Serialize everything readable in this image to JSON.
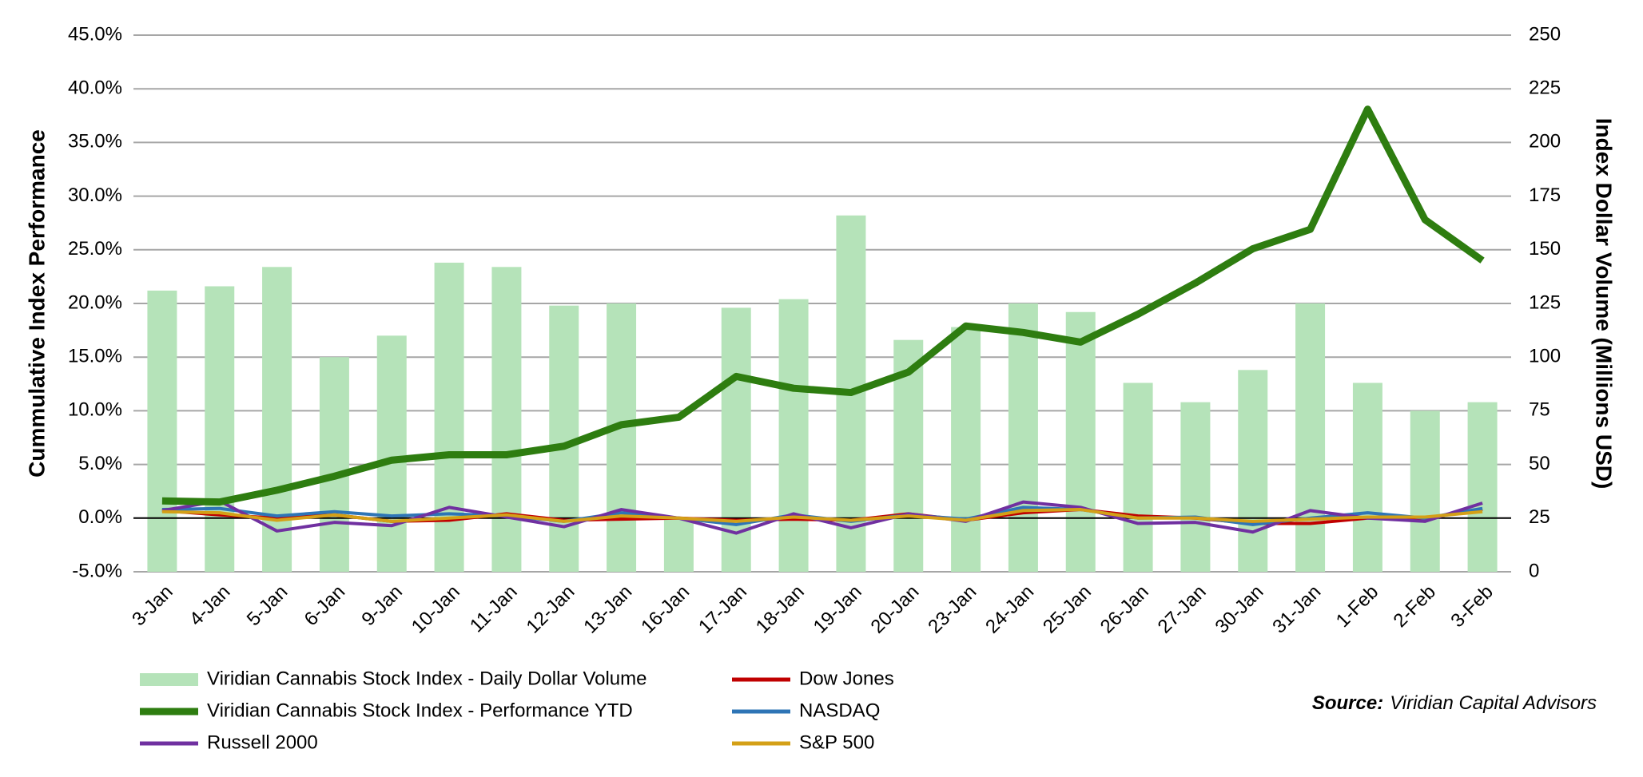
{
  "chart_data": {
    "type": "bar-line",
    "y_label": "Cummulative Index Performance",
    "y2_label": "Index Dollar Volume (Millions USD)",
    "source_label": "Source:",
    "source_text": "Viridian Capital Advisors",
    "categories": [
      "3-Jan",
      "4-Jan",
      "5-Jan",
      "6-Jan",
      "9-Jan",
      "10-Jan",
      "11-Jan",
      "12-Jan",
      "13-Jan",
      "16-Jan",
      "17-Jan",
      "18-Jan",
      "19-Jan",
      "20-Jan",
      "23-Jan",
      "24-Jan",
      "25-Jan",
      "26-Jan",
      "27-Jan",
      "30-Jan",
      "31-Jan",
      "1-Feb",
      "2-Feb",
      "3-Feb"
    ],
    "series": [
      {
        "name": "Viridian Cannabis Stock Index - Daily Dollar Volume",
        "type": "bar",
        "axis": "y2",
        "color": "#b5e3b9",
        "values": [
          131,
          133,
          142,
          100,
          110,
          144,
          142,
          124,
          125,
          25,
          123,
          127,
          166,
          108,
          114,
          125,
          121,
          88,
          79,
          94,
          125,
          88,
          75,
          79
        ]
      },
      {
        "name": "Viridian Cannabis Stock Index - Performance YTD",
        "type": "line",
        "color": "#2e7d10",
        "values": [
          1.6,
          1.5,
          2.6,
          3.9,
          5.4,
          5.9,
          5.9,
          6.7,
          8.7,
          9.4,
          13.2,
          12.1,
          11.7,
          13.6,
          17.9,
          17.3,
          16.4,
          19.0,
          21.9,
          25.1,
          26.9,
          38.1,
          27.8,
          24.0
        ]
      },
      {
        "name": "Dow Jones",
        "type": "line",
        "color": "#c00000",
        "values": [
          0.7,
          0.3,
          0,
          0.3,
          -0.3,
          -0.2,
          0.4,
          -0.2,
          -0.1,
          0,
          -0.2,
          -0.1,
          -0.2,
          0.4,
          -0.2,
          0.5,
          0.8,
          0.2,
          0,
          -0.5,
          -0.5,
          0,
          0,
          0.8
        ]
      },
      {
        "name": "NASDAQ",
        "type": "line",
        "color": "#2e75b6",
        "values": [
          0.8,
          0.9,
          0.2,
          0.6,
          0.2,
          0.4,
          0.2,
          -0.3,
          0.5,
          0,
          -0.6,
          0.3,
          -0.3,
          0.3,
          -0.1,
          1.0,
          0.8,
          0,
          0.1,
          -0.6,
          0,
          0.5,
          0,
          0.9
        ]
      },
      {
        "name": "Russell 2000",
        "type": "line",
        "color": "#7030a0",
        "values": [
          0.7,
          1.6,
          -1.2,
          -0.4,
          -0.7,
          1.0,
          0.1,
          -0.8,
          0.8,
          0,
          -1.4,
          0.4,
          -0.9,
          0.4,
          -0.3,
          1.5,
          1.0,
          -0.5,
          -0.4,
          -1.3,
          0.7,
          0,
          -0.3,
          1.4
        ]
      },
      {
        "name": "S&P 500",
        "type": "line",
        "color": "#d4a017",
        "values": [
          0.6,
          0.5,
          -0.2,
          0.3,
          -0.3,
          0,
          0.3,
          -0.3,
          0.2,
          0,
          -0.3,
          0.1,
          -0.2,
          0.2,
          -0.2,
          0.7,
          0.8,
          0,
          0,
          -0.3,
          -0.1,
          0.1,
          0.1,
          0.6
        ]
      }
    ],
    "ylim": [
      -5,
      45
    ],
    "yticks": [
      {
        "value": -5,
        "label": "-5.0%"
      },
      {
        "value": 0,
        "label": "0.0%"
      },
      {
        "value": 5,
        "label": "5.0%"
      },
      {
        "value": 10,
        "label": "10.0%"
      },
      {
        "value": 15,
        "label": "15.0%"
      },
      {
        "value": 20,
        "label": "20.0%"
      },
      {
        "value": 25,
        "label": "25.0%"
      },
      {
        "value": 30,
        "label": "30.0%"
      },
      {
        "value": 35,
        "label": "35.0%"
      },
      {
        "value": 40,
        "label": "40.0%"
      },
      {
        "value": 45,
        "label": "45.0%"
      }
    ],
    "y2lim": [
      0,
      250
    ],
    "y2ticks": [
      0,
      25,
      50,
      75,
      100,
      125,
      150,
      175,
      200,
      225,
      250
    ],
    "grid": true
  }
}
